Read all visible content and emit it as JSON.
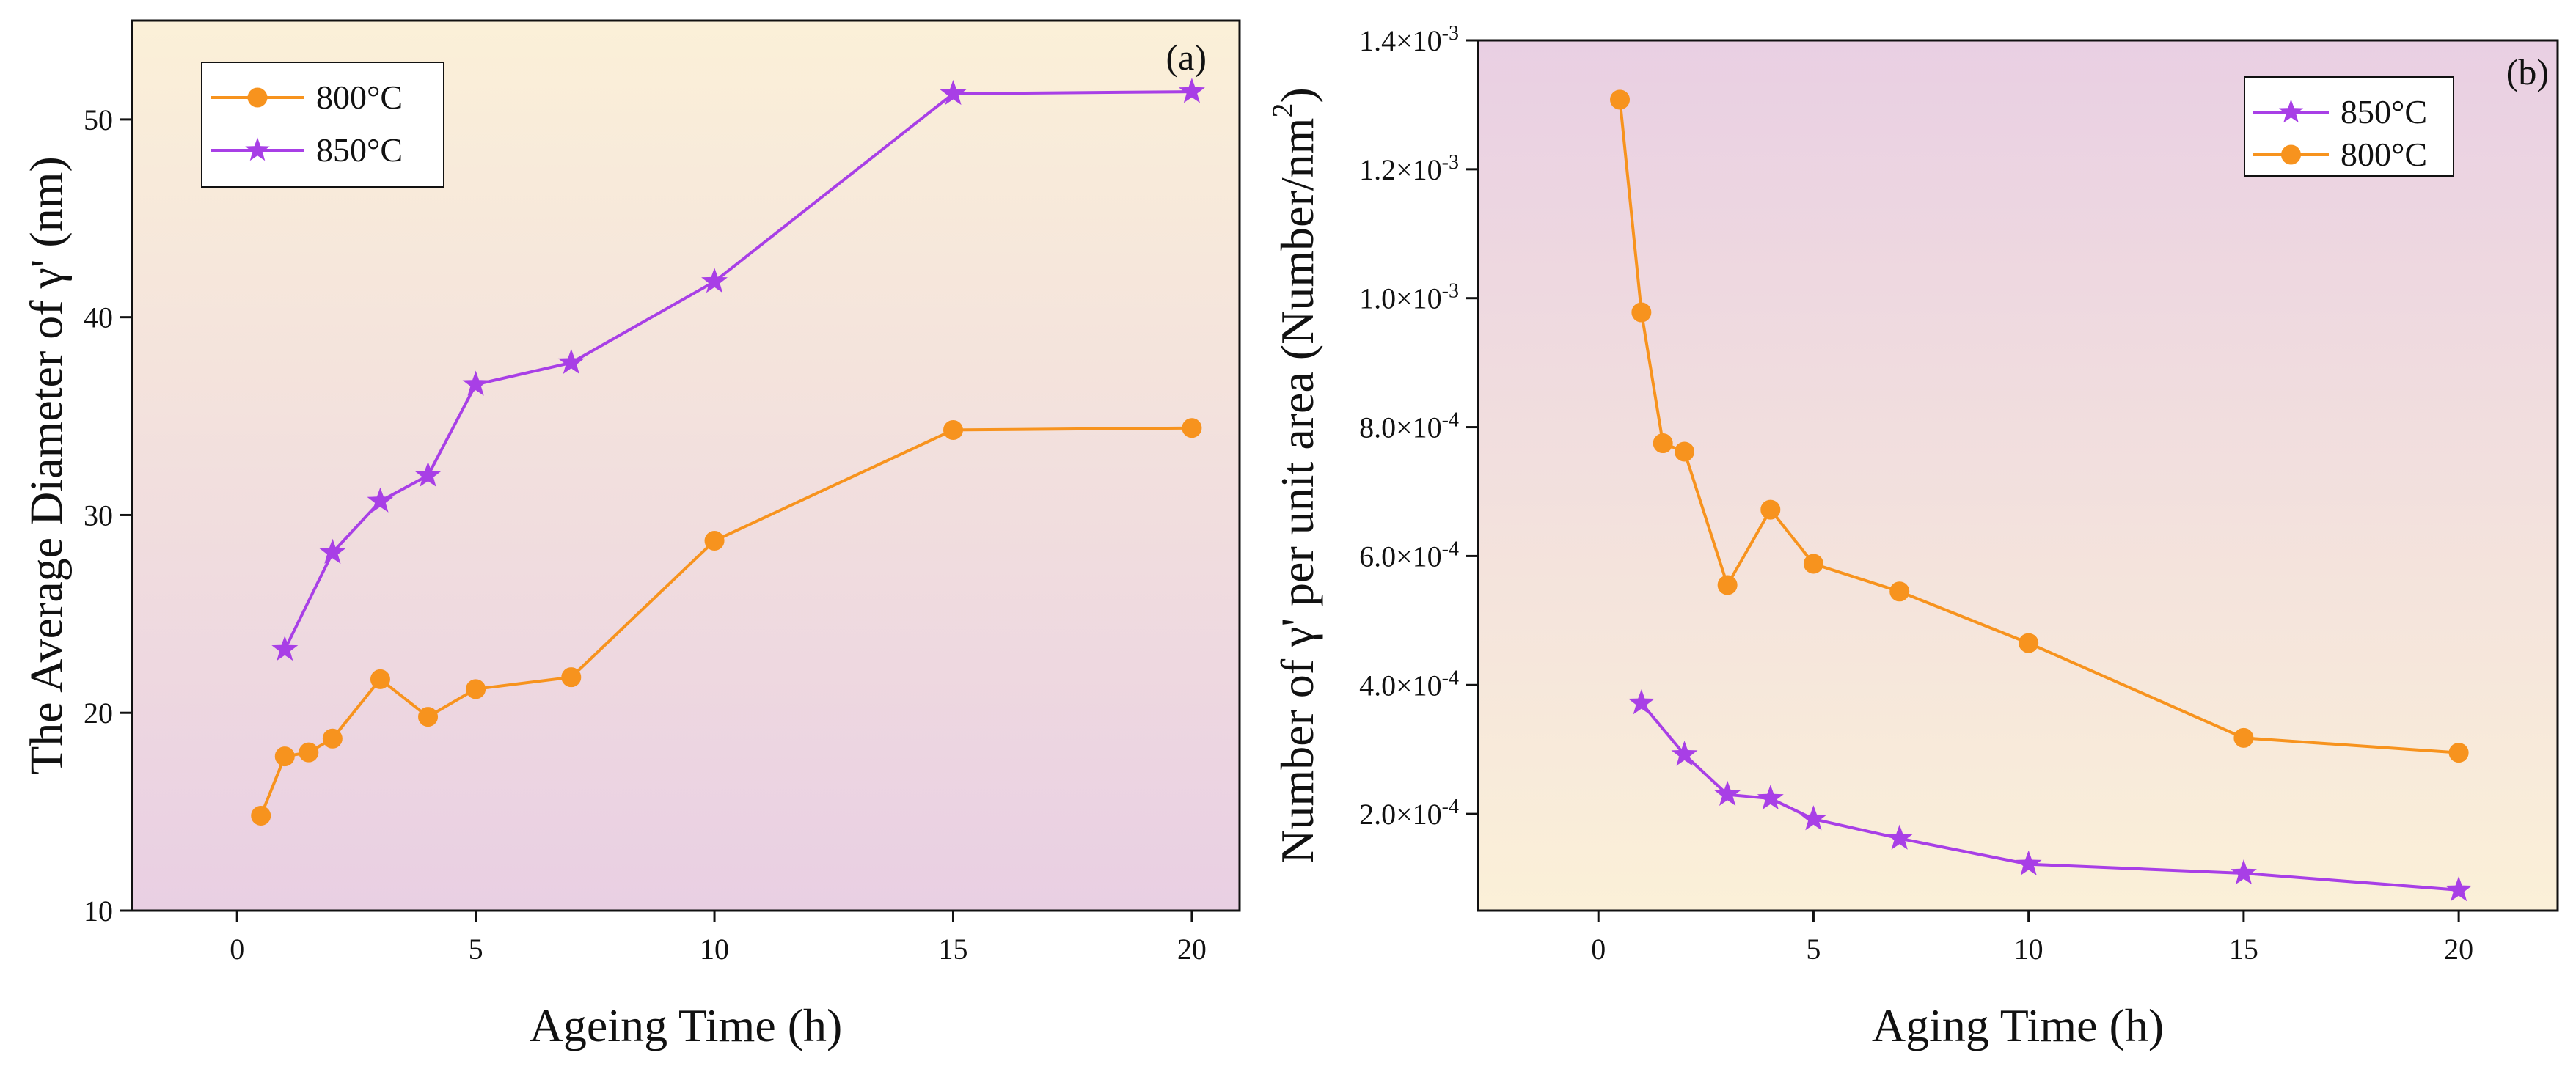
{
  "chart_data": [
    {
      "id": "panel-a",
      "type": "line",
      "panel_label": "(a)",
      "xlabel": "Ageing Time (h)",
      "ylabel": "The Average Diameter of γ' (nm)",
      "xlim": [
        -2.2,
        21
      ],
      "ylim": [
        10,
        55
      ],
      "xticks": [
        0,
        5,
        10,
        15,
        20
      ],
      "yticks": [
        10,
        20,
        30,
        40,
        50
      ],
      "xtick_labels": [
        "0",
        "5",
        "10",
        "15",
        "20"
      ],
      "ytick_labels": [
        "10",
        "20",
        "30",
        "40",
        "50"
      ],
      "legend_position": "top-left",
      "background_gradient": [
        "#fbf0d8",
        "#e9cfe3"
      ],
      "series": [
        {
          "name": "800°C",
          "marker": "circle",
          "color": "#f7931e",
          "x": [
            0.5,
            1,
            1.5,
            2,
            3,
            4,
            5,
            7,
            10,
            15,
            20
          ],
          "y": [
            14.8,
            17.8,
            18.0,
            18.7,
            21.7,
            19.8,
            21.2,
            21.8,
            28.7,
            34.3,
            34.4
          ]
        },
        {
          "name": "850°C",
          "marker": "star",
          "color": "#a83fe6",
          "x": [
            1,
            2,
            3,
            4,
            5,
            7,
            10,
            15,
            20
          ],
          "y": [
            23.2,
            28.1,
            30.7,
            32.0,
            36.6,
            37.7,
            41.8,
            51.3,
            51.4
          ]
        }
      ]
    },
    {
      "id": "panel-b",
      "type": "line",
      "panel_label": "(b)",
      "xlabel": "Aging Time (h)",
      "ylabel_main": "Number of γ' per unit area (Number/nm",
      "ylabel_sup": "2",
      "ylabel_end": ")",
      "xlim": [
        -2.8,
        22.3
      ],
      "ylim": [
        0.5,
        14.0
      ],
      "y_scale_note": "values in units of 1e-4",
      "xticks": [
        0,
        5,
        10,
        15,
        20
      ],
      "xtick_labels": [
        "0",
        "5",
        "10",
        "15",
        "20"
      ],
      "yticks": [
        2,
        4,
        6,
        8,
        10,
        12,
        14
      ],
      "ytick_mantissas": [
        "2.0×10",
        "4.0×10",
        "6.0×10",
        "8.0×10",
        "1.0×10",
        "1.2×10",
        "1.4×10"
      ],
      "ytick_exponents": [
        "-4",
        "-4",
        "-4",
        "-4",
        "-3",
        "-3",
        "-3"
      ],
      "legend_position": "top-right",
      "background_gradient": [
        "#e9cfe3",
        "#fbf0d8"
      ],
      "series": [
        {
          "name": "850°C",
          "marker": "star",
          "color": "#a83fe6",
          "x": [
            1,
            2,
            3,
            4,
            5,
            7,
            10,
            15,
            20
          ],
          "y": [
            3.72,
            2.92,
            2.3,
            2.24,
            1.92,
            1.62,
            1.22,
            1.08,
            0.82
          ]
        },
        {
          "name": "800°C",
          "marker": "circle",
          "color": "#f7931e",
          "x": [
            0.5,
            1,
            1.5,
            2,
            3,
            4,
            5,
            7,
            10,
            15,
            20
          ],
          "y": [
            13.08,
            9.78,
            7.75,
            7.62,
            5.55,
            6.72,
            5.88,
            5.45,
            4.65,
            3.18,
            2.95
          ]
        }
      ]
    }
  ]
}
